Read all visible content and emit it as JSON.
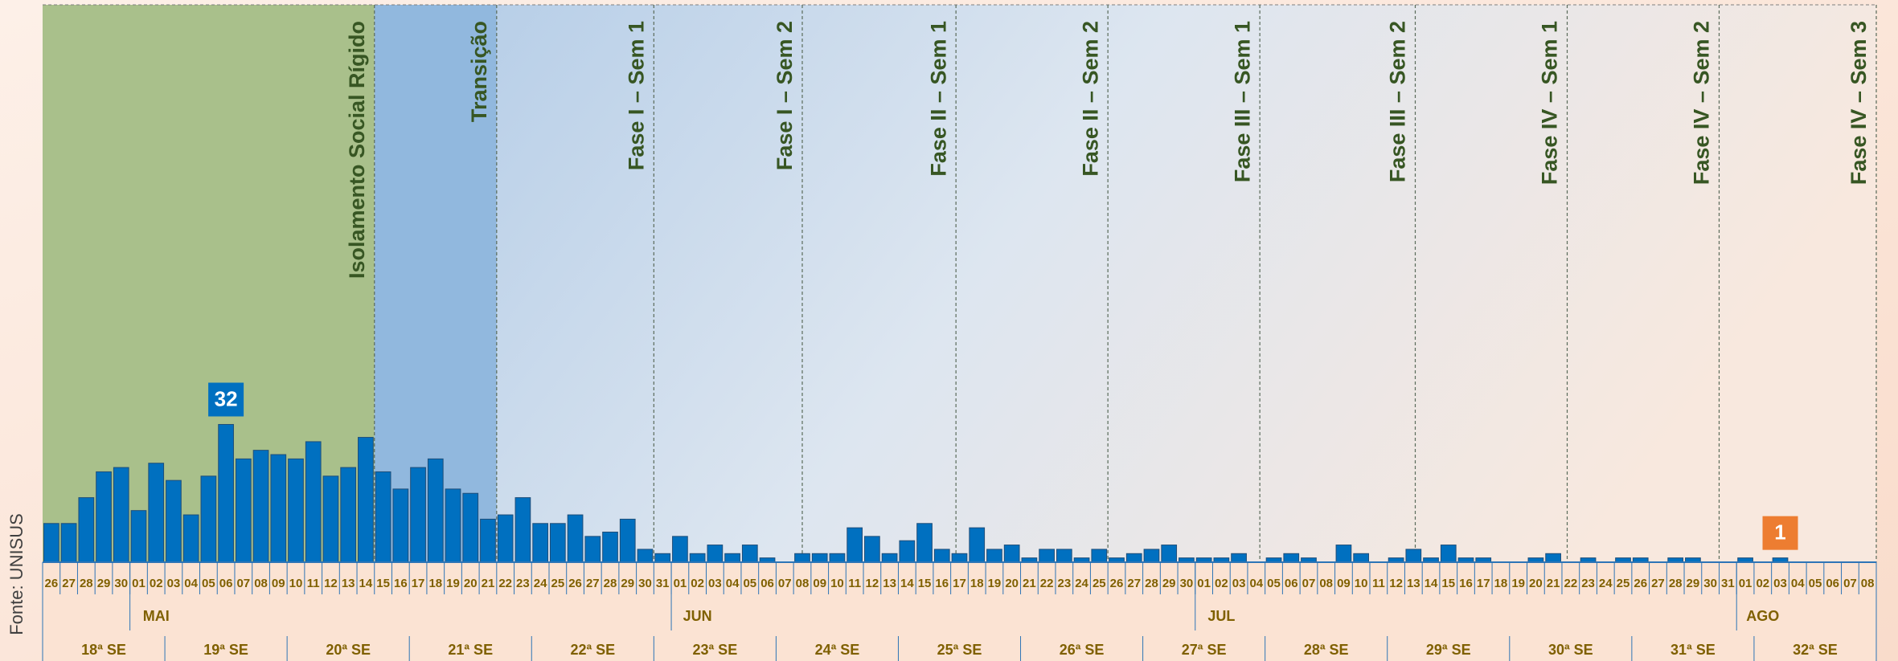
{
  "chart_data": {
    "type": "bar",
    "source": "Fonte: UNISUS",
    "color": "#0070c0",
    "categories": [
      "26",
      "27",
      "28",
      "29",
      "30",
      "01",
      "02",
      "03",
      "04",
      "05",
      "06",
      "07",
      "08",
      "09",
      "10",
      "11",
      "12",
      "13",
      "14",
      "15",
      "16",
      "17",
      "18",
      "19",
      "20",
      "21",
      "22",
      "23",
      "24",
      "25",
      "26",
      "27",
      "28",
      "29",
      "30",
      "31",
      "01",
      "02",
      "03",
      "04",
      "05",
      "06",
      "07",
      "08",
      "09",
      "10",
      "11",
      "12",
      "13",
      "14",
      "15",
      "16",
      "17",
      "18",
      "19",
      "20",
      "21",
      "22",
      "23",
      "24",
      "25",
      "26",
      "27",
      "28",
      "29",
      "30",
      "01",
      "02",
      "03",
      "04",
      "05",
      "06",
      "07",
      "08",
      "09",
      "10",
      "11",
      "12",
      "13",
      "14",
      "15",
      "16",
      "17",
      "18",
      "19",
      "20",
      "21",
      "22",
      "23",
      "24",
      "25",
      "26",
      "27",
      "28",
      "29",
      "30",
      "31",
      "01",
      "02",
      "03",
      "04",
      "05",
      "06",
      "07",
      "08"
    ],
    "values": [
      9,
      9,
      15,
      21,
      22,
      12,
      23,
      19,
      11,
      20,
      32,
      24,
      26,
      25,
      24,
      28,
      20,
      22,
      29,
      21,
      17,
      22,
      24,
      17,
      16,
      10,
      11,
      15,
      9,
      9,
      11,
      6,
      7,
      10,
      3,
      2,
      6,
      2,
      4,
      2,
      4,
      1,
      0,
      2,
      2,
      2,
      8,
      6,
      2,
      5,
      9,
      3,
      2,
      8,
      3,
      4,
      1,
      3,
      3,
      1,
      3,
      1,
      2,
      3,
      4,
      1,
      1,
      1,
      2,
      0,
      1,
      2,
      1,
      0,
      4,
      2,
      0,
      1,
      3,
      1,
      4,
      1,
      1,
      0,
      0,
      1,
      2,
      0,
      1,
      0,
      1,
      1,
      0,
      1,
      1,
      0,
      0,
      1,
      0,
      1,
      0,
      0,
      0,
      0,
      0
    ],
    "months": [
      "MAI",
      "JUN",
      "JUL",
      "AGO"
    ],
    "weeks": [
      "18ª SE",
      "19ª SE",
      "20ª SE",
      "21ª SE",
      "22ª SE",
      "23ª SE",
      "24ª SE",
      "25ª SE",
      "26ª SE",
      "27ª SE",
      "28ª SE",
      "29ª SE",
      "30ª SE",
      "31ª SE",
      "32ª SE"
    ],
    "labeled_bars": [
      {
        "index": 10,
        "color": "#0070c0"
      },
      {
        "index": 99,
        "color": "#ed7d31"
      }
    ],
    "phases": [
      "Isolamento Social Rígido",
      "Transição",
      "Fase I – Sem 1",
      "Fase I – Sem 2",
      "Fase II – Sem 1",
      "Fase II – Sem 2",
      "Fase III – Sem 1",
      "Fase III – Sem 2",
      "Fase IV – Sem 1",
      "Fase IV – Sem 2",
      "Fase IV – Sem 3"
    ]
  }
}
